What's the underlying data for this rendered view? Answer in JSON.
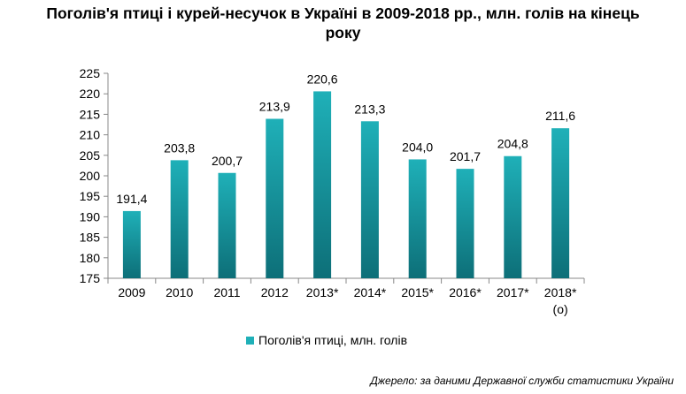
{
  "title_line1": "Поголів'я птиці і курей-несучок в Україні в 2009-2018 рр., млн. голів на кінець",
  "title_line2": "року",
  "source": "Джерело: за даними Державної служби статистики України",
  "colors": {
    "bar_top": "#1fb0b8",
    "bar_bottom": "#0d6f78",
    "axis": "#888888"
  },
  "chart_data": {
    "type": "bar",
    "categories": [
      "2009",
      "2010",
      "2011",
      "2012",
      "2013*",
      "2014*",
      "2015*",
      "2016*",
      "2017*",
      "2018*"
    ],
    "category_sublabels": [
      "",
      "",
      "",
      "",
      "",
      "",
      "",
      "",
      "",
      "(о)"
    ],
    "series": [
      {
        "name": "Поголів'я птиці, млн. голів",
        "values": [
          191.4,
          203.8,
          200.7,
          213.9,
          220.6,
          213.3,
          204.0,
          201.7,
          204.8,
          211.6
        ]
      }
    ],
    "data_labels": [
      "191,4",
      "203,8",
      "200,7",
      "213,9",
      "220,6",
      "213,3",
      "204,0",
      "201,7",
      "204,8",
      "211,6"
    ],
    "ylim": [
      175,
      225
    ],
    "yticks": [
      175,
      180,
      185,
      190,
      195,
      200,
      205,
      210,
      215,
      220,
      225
    ],
    "legend_position": "bottom",
    "grid": false
  }
}
